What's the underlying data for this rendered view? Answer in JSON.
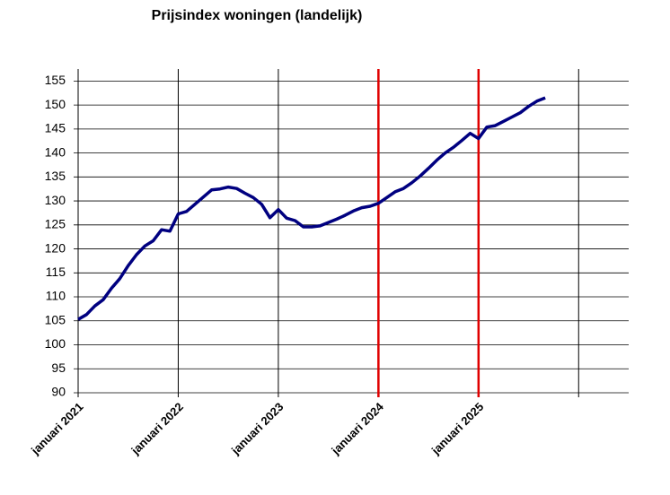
{
  "chart_data": {
    "type": "line",
    "title": "Prijsindex woningen (landelijk)",
    "x": [
      "2021-01",
      "2021-02",
      "2021-03",
      "2021-04",
      "2021-05",
      "2021-06",
      "2021-07",
      "2021-08",
      "2021-09",
      "2021-10",
      "2021-11",
      "2021-12",
      "2022-01",
      "2022-02",
      "2022-03",
      "2022-04",
      "2022-05",
      "2022-06",
      "2022-07",
      "2022-08",
      "2022-09",
      "2022-10",
      "2022-11",
      "2022-12",
      "2023-01",
      "2023-02",
      "2023-03",
      "2023-04",
      "2023-05",
      "2023-06",
      "2023-07",
      "2023-08",
      "2023-09",
      "2023-10",
      "2023-11",
      "2023-12",
      "2024-01",
      "2024-02",
      "2024-03",
      "2024-04",
      "2024-05",
      "2024-06",
      "2024-07",
      "2024-08",
      "2024-09",
      "2024-10",
      "2024-11",
      "2024-12",
      "2025-01",
      "2025-02",
      "2025-03",
      "2025-04",
      "2025-05",
      "2025-06",
      "2025-07",
      "2025-08",
      "2025-09"
    ],
    "series": [
      {
        "color": "#000080",
        "values": [
          105.3,
          106.3,
          108.1,
          109.4,
          111.8,
          113.8,
          116.5,
          118.8,
          120.6,
          121.7,
          124.0,
          123.7,
          127.3,
          127.8,
          129.3,
          130.8,
          132.3,
          132.5,
          132.9,
          132.6,
          131.6,
          130.7,
          129.3,
          126.5,
          128.2,
          126.4,
          125.9,
          124.6,
          124.6,
          124.8,
          125.5,
          126.2,
          127.0,
          127.9,
          128.6,
          128.9,
          129.5,
          130.7,
          131.9,
          132.6,
          133.8,
          135.2,
          136.8,
          138.5,
          140.0,
          141.2,
          142.6,
          144.1,
          143.0,
          145.4,
          145.7,
          146.6,
          147.5,
          148.4,
          149.7,
          150.8,
          151.5
        ]
      }
    ],
    "xlim": [
      "2021-01",
      "2026-07"
    ],
    "xticks": [
      {
        "value": "2021-01",
        "label": "januari 2021"
      },
      {
        "value": "2022-01",
        "label": "januari 2022"
      },
      {
        "value": "2023-01",
        "label": "januari 2023"
      },
      {
        "value": "2024-01",
        "label": "januari 2024"
      },
      {
        "value": "2025-01",
        "label": "januari 2025"
      }
    ],
    "x_gridlines": [
      "2021-01",
      "2022-01",
      "2023-01",
      "2024-01",
      "2025-01",
      "2026-01"
    ],
    "highlight_lines": {
      "color": "#e00000",
      "x": [
        "2024-01",
        "2025-01"
      ]
    },
    "ylim": [
      90,
      157.5
    ],
    "yticks": [
      90,
      95,
      100,
      105,
      110,
      115,
      120,
      125,
      130,
      135,
      140,
      145,
      150,
      155
    ],
    "grid": true
  }
}
